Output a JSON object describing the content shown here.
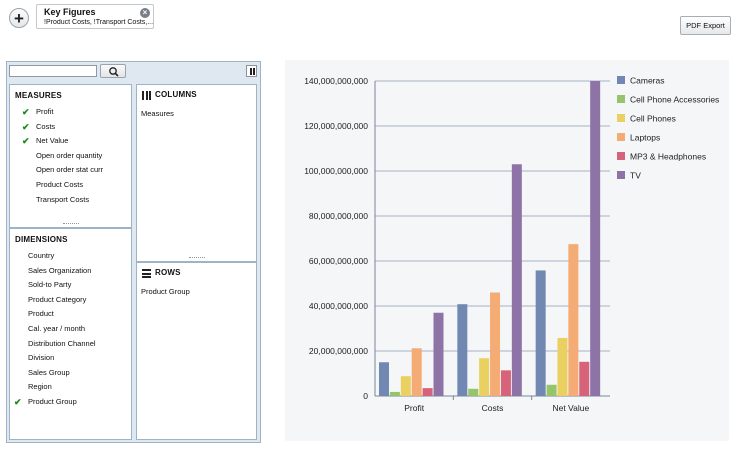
{
  "toolbar": {
    "add_label": "+",
    "key_figures_title": "Key Figures",
    "key_figures_subtitle": "!Product Costs, !Transport Costs,...",
    "close_symbol": "×",
    "pdf_export_label": "PDF Export"
  },
  "designer": {
    "search": {
      "value": "",
      "placeholder": ""
    },
    "measures": {
      "title": "MEASURES",
      "items": [
        {
          "label": "Profit",
          "checked": true
        },
        {
          "label": "Costs",
          "checked": true
        },
        {
          "label": "Net Value",
          "checked": true
        },
        {
          "label": "Open order quantity",
          "checked": false
        },
        {
          "label": "Open order stat curr",
          "checked": false
        },
        {
          "label": "Product Costs",
          "checked": false
        },
        {
          "label": "Transport Costs",
          "checked": false
        }
      ]
    },
    "dimensions": {
      "title": "DIMENSIONS",
      "items": [
        {
          "label": "Country",
          "checked": false
        },
        {
          "label": "Sales Organization",
          "checked": false
        },
        {
          "label": "Sold-to Party",
          "checked": false
        },
        {
          "label": "Product Category",
          "checked": false
        },
        {
          "label": "Product",
          "checked": false
        },
        {
          "label": "Cal. year / month",
          "checked": false
        },
        {
          "label": "Distribution Channel",
          "checked": false
        },
        {
          "label": "Division",
          "checked": false
        },
        {
          "label": "Sales Group",
          "checked": false
        },
        {
          "label": "Region",
          "checked": false
        },
        {
          "label": "Product Group",
          "checked": true
        }
      ]
    },
    "columns": {
      "title": "COLUMNS",
      "items": [
        "Measures"
      ]
    },
    "rows": {
      "title": "ROWS",
      "items": [
        "Product Group"
      ]
    }
  },
  "colors": {
    "check": "#1a8a1a",
    "gridline": "#a8b3c4",
    "series": [
      "#7189b2",
      "#97c46a",
      "#ead061",
      "#f5ab74",
      "#d7637a",
      "#8e73a7"
    ]
  },
  "chart_data": {
    "type": "bar",
    "categories": [
      "Profit",
      "Costs",
      "Net Value"
    ],
    "series": [
      {
        "name": "Cameras",
        "values": [
          15000000000,
          40800000000,
          55800000000
        ]
      },
      {
        "name": "Cell Phone Accessories",
        "values": [
          1800000000,
          3200000000,
          5000000000
        ]
      },
      {
        "name": "Cell Phones",
        "values": [
          8800000000,
          16800000000,
          25800000000
        ]
      },
      {
        "name": "Laptops",
        "values": [
          21200000000,
          46000000000,
          67500000000
        ]
      },
      {
        "name": "MP3 & Headphones",
        "values": [
          3500000000,
          11400000000,
          15200000000
        ]
      },
      {
        "name": "TV",
        "values": [
          37000000000,
          103000000000,
          140000000000
        ]
      }
    ],
    "ylim": [
      0,
      140000000000
    ],
    "yticks": [
      0,
      20000000000,
      40000000000,
      60000000000,
      80000000000,
      100000000000,
      120000000000,
      140000000000
    ],
    "ytick_labels": [
      "0",
      "20,000,000,000",
      "40,000,000,000",
      "60,000,000,000",
      "80,000,000,000",
      "100,000,000,000",
      "120,000,000,000",
      "140,000,000,000"
    ],
    "grid": true,
    "legend_position": "right",
    "title": "",
    "xlabel": "",
    "ylabel": ""
  }
}
